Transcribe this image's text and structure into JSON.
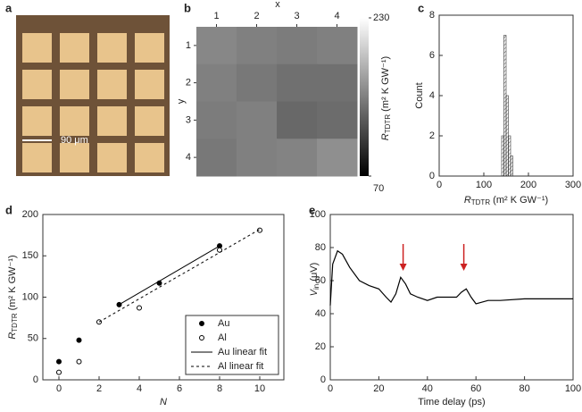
{
  "panel_labels": [
    "a",
    "b",
    "c",
    "d",
    "e"
  ],
  "micrograph": {
    "scale_label": "90 μm"
  },
  "chart_data": [
    {
      "type": "heatmap",
      "xlabel": "x",
      "ylabel": "y",
      "xticks": [
        1,
        2,
        3,
        4
      ],
      "yticks": [
        1,
        2,
        3,
        4
      ],
      "values": [
        [
          155,
          150,
          148,
          150
        ],
        [
          150,
          145,
          140,
          140
        ],
        [
          148,
          150,
          135,
          138
        ],
        [
          145,
          150,
          152,
          160
        ]
      ],
      "clim": [
        70,
        230
      ],
      "cticks": [
        70,
        230
      ],
      "clabel": {
        "symbol": "R",
        "sub": "TDTR",
        "unit": " (m² K GW⁻¹)"
      }
    },
    {
      "type": "histogram",
      "ylabel": "Count",
      "xlabel": {
        "symbol": "R",
        "sub": "TDTR",
        "unit": " (m² K GW⁻¹)"
      },
      "bins": [
        140,
        145,
        150,
        155,
        160,
        165
      ],
      "values": [
        2,
        7,
        4,
        2,
        1
      ],
      "xlim": [
        0,
        300
      ],
      "xticks": [
        0,
        100,
        200,
        300
      ],
      "ylim": [
        0,
        8
      ],
      "yticks": [
        0,
        2,
        4,
        6,
        8
      ]
    },
    {
      "type": "scatter",
      "xlabel": "N",
      "ylabel": {
        "symbol": "R",
        "sub": "TDTR",
        "unit": " (m² K GW⁻¹)"
      },
      "xlim": [
        -0.8,
        11.2
      ],
      "xticks": [
        0,
        2,
        4,
        6,
        8,
        10
      ],
      "ylim": [
        0,
        200
      ],
      "yticks": [
        0,
        50,
        100,
        150,
        200
      ],
      "legend": "lower right",
      "series": [
        {
          "name": "Au",
          "marker": "filled",
          "x": [
            0,
            1,
            3,
            5,
            8
          ],
          "values": [
            22,
            48,
            91,
            117,
            162
          ]
        },
        {
          "name": "Al",
          "marker": "open",
          "x": [
            0,
            1,
            2,
            4,
            8,
            10
          ],
          "values": [
            9,
            22,
            70,
            87,
            157,
            181
          ]
        },
        {
          "name": "Au linear fit",
          "style": "solid",
          "x": [
            3,
            8
          ],
          "values": [
            91,
            162
          ]
        },
        {
          "name": "Al linear fit",
          "style": "dashed",
          "x": [
            2,
            10
          ],
          "values": [
            70,
            182
          ]
        }
      ]
    },
    {
      "type": "line",
      "xlabel": "Time delay (ps)",
      "ylabel": {
        "symbol": "V",
        "sub": "in",
        "unit": " (μV)"
      },
      "xlim": [
        0,
        100
      ],
      "xticks": [
        0,
        20,
        40,
        60,
        80,
        100
      ],
      "ylim": [
        0,
        100
      ],
      "yticks": [
        0,
        20,
        40,
        60,
        80,
        100
      ],
      "color": "#000000",
      "arrow_color": "#cc2222",
      "arrows": [
        30,
        55
      ],
      "x": [
        0,
        1,
        3,
        5,
        8,
        12,
        16,
        20,
        23,
        25,
        27,
        29,
        31,
        33,
        36,
        40,
        44,
        48,
        52,
        54,
        56,
        58,
        60,
        65,
        70,
        80,
        90,
        100
      ],
      "values": [
        45,
        70,
        78,
        76,
        68,
        60,
        57,
        55,
        50,
        47,
        52,
        62,
        58,
        52,
        50,
        48,
        50,
        50,
        50,
        53,
        55,
        50,
        46,
        48,
        48,
        49,
        49,
        49
      ]
    }
  ]
}
